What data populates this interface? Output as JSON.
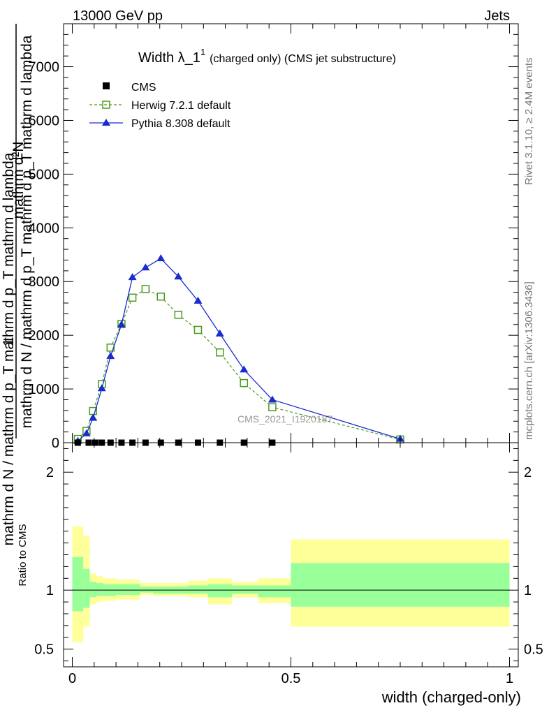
{
  "header": {
    "left": "13000 GeV pp",
    "right": "Jets"
  },
  "side_labels": {
    "right_top": "Rivet 3.1.10, ≥ 2.4M events",
    "right_bottom": "mcplots.cern.ch [arXiv:1306.3436]"
  },
  "colors": {
    "cms": "#000000",
    "herwig": "#4a9a1e",
    "pythia": "#1a2ccc",
    "band_outer": "#ffff99",
    "band_inner": "#99ff99"
  },
  "chart_data": [
    {
      "type": "line",
      "title": "Width λ_1",
      "title_sup": "1",
      "title_suffix": "(charged only) (CMS jet substructure)",
      "ylabel_num": "1",
      "ylabel_den": "mathrm d N / mathrm d p_T mathrm d p_T mathrm d lambda",
      "ylabel_frac_num": "mathrm d²N",
      "ylabel_frac_den": "mathrm d N / mathrm d p_T mathrm d p_T mathrm d lambda",
      "watermark": "CMS_2021_I1920187",
      "xlim": [
        -0.02,
        1.02
      ],
      "ylim": [
        0,
        7800
      ],
      "y_ticks": [
        0,
        1000,
        2000,
        3000,
        4000,
        5000,
        6000,
        7000
      ],
      "y_tick_labels": [
        "0",
        "1000",
        "2000",
        "3000",
        "4000",
        "5000",
        "6000",
        "7000"
      ],
      "legend_position": "top-left",
      "series": [
        {
          "name": "CMS",
          "x": [
            0.0125,
            0.0375,
            0.0525,
            0.0675,
            0.0875,
            0.1125,
            0.1375,
            0.1675,
            0.2025,
            0.2425,
            0.2875,
            0.3375,
            0.3925,
            0.4575
          ],
          "y": [
            0,
            0,
            0,
            0,
            0,
            0,
            0,
            0,
            0,
            0,
            0,
            0,
            0,
            0
          ]
        },
        {
          "name": "Herwig 7.2.1 default",
          "x": [
            0.0125,
            0.0325,
            0.0475,
            0.0675,
            0.0875,
            0.1125,
            0.1375,
            0.1675,
            0.2025,
            0.2425,
            0.2875,
            0.3375,
            0.3925,
            0.4575,
            0.75
          ],
          "y": [
            70,
            220,
            590,
            1090,
            1770,
            2210,
            2700,
            2860,
            2720,
            2380,
            2100,
            1680,
            1110,
            660,
            60
          ]
        },
        {
          "name": "Pythia 8.308 default",
          "x": [
            0.0125,
            0.0325,
            0.0475,
            0.0675,
            0.0875,
            0.1125,
            0.1375,
            0.1675,
            0.2025,
            0.2425,
            0.2875,
            0.3375,
            0.3925,
            0.4575,
            0.75
          ],
          "y": [
            30,
            170,
            460,
            1010,
            1610,
            2200,
            3080,
            3260,
            3430,
            3090,
            2640,
            2030,
            1360,
            800,
            70
          ]
        }
      ]
    },
    {
      "type": "area",
      "ylabel": "Ratio to CMS",
      "xlabel": "width (charged-only)",
      "xlim": [
        -0.02,
        1.02
      ],
      "ylim": [
        0.35,
        2.25
      ],
      "x_ticks": [
        0,
        0.5,
        1
      ],
      "x_tick_labels": [
        "0",
        "0.5",
        "1"
      ],
      "y_ticks": [
        0.5,
        1,
        2
      ],
      "y_tick_labels": [
        "0.5",
        "1",
        "2"
      ],
      "bins": [
        {
          "x0": 0.0,
          "x1": 0.025,
          "outer": [
            0.56,
            1.54
          ],
          "inner": [
            0.82,
            1.28
          ]
        },
        {
          "x0": 0.025,
          "x1": 0.04,
          "outer": [
            0.69,
            1.46
          ],
          "inner": [
            0.85,
            1.18
          ]
        },
        {
          "x0": 0.04,
          "x1": 0.055,
          "outer": [
            0.88,
            1.14
          ],
          "inner": [
            0.94,
            1.07
          ]
        },
        {
          "x0": 0.055,
          "x1": 0.07,
          "outer": [
            0.9,
            1.12
          ],
          "inner": [
            0.95,
            1.06
          ]
        },
        {
          "x0": 0.07,
          "x1": 0.1,
          "outer": [
            0.91,
            1.1
          ],
          "inner": [
            0.95,
            1.05
          ]
        },
        {
          "x0": 0.1,
          "x1": 0.155,
          "outer": [
            0.92,
            1.09
          ],
          "inner": [
            0.96,
            1.05
          ]
        },
        {
          "x0": 0.155,
          "x1": 0.185,
          "outer": [
            0.96,
            1.06
          ],
          "inner": [
            0.98,
            1.03
          ]
        },
        {
          "x0": 0.185,
          "x1": 0.265,
          "outer": [
            0.95,
            1.06
          ],
          "inner": [
            0.97,
            1.03
          ]
        },
        {
          "x0": 0.265,
          "x1": 0.31,
          "outer": [
            0.94,
            1.08
          ],
          "inner": [
            0.97,
            1.04
          ]
        },
        {
          "x0": 0.31,
          "x1": 0.365,
          "outer": [
            0.88,
            1.1
          ],
          "inner": [
            0.94,
            1.05
          ]
        },
        {
          "x0": 0.365,
          "x1": 0.425,
          "outer": [
            0.94,
            1.07
          ],
          "inner": [
            0.97,
            1.04
          ]
        },
        {
          "x0": 0.425,
          "x1": 0.5,
          "outer": [
            0.89,
            1.1
          ],
          "inner": [
            0.94,
            1.04
          ]
        },
        {
          "x0": 0.5,
          "x1": 1.0,
          "outer": [
            0.69,
            1.43
          ],
          "inner": [
            0.86,
            1.23
          ]
        }
      ]
    }
  ]
}
